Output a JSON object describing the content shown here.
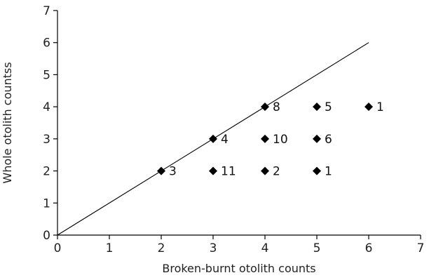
{
  "chart_data": {
    "type": "scatter",
    "title": "",
    "xlabel": "Broken-burnt otolith counts",
    "ylabel": "Whole otolith countss",
    "xlim": [
      0,
      7
    ],
    "ylim": [
      0,
      7
    ],
    "x_ticks": [
      "0",
      "1",
      "2",
      "3",
      "4",
      "5",
      "6",
      "7"
    ],
    "y_ticks": [
      "0",
      "1",
      "2",
      "3",
      "4",
      "5",
      "6",
      "7"
    ],
    "grid": false,
    "legend": "none",
    "marker": "diamond",
    "marker_color": "#000000",
    "points": [
      {
        "x": 2,
        "y": 2,
        "label": "3"
      },
      {
        "x": 3,
        "y": 3,
        "label": "4"
      },
      {
        "x": 3,
        "y": 2,
        "label": "11"
      },
      {
        "x": 4,
        "y": 4,
        "label": "8"
      },
      {
        "x": 4,
        "y": 3,
        "label": "10"
      },
      {
        "x": 4,
        "y": 2,
        "label": "2"
      },
      {
        "x": 5,
        "y": 4,
        "label": "5"
      },
      {
        "x": 5,
        "y": 3,
        "label": "6"
      },
      {
        "x": 5,
        "y": 2,
        "label": "1"
      },
      {
        "x": 6,
        "y": 4,
        "label": "1"
      }
    ],
    "reference_line": {
      "x": [
        0,
        6
      ],
      "y": [
        0,
        6
      ]
    }
  }
}
